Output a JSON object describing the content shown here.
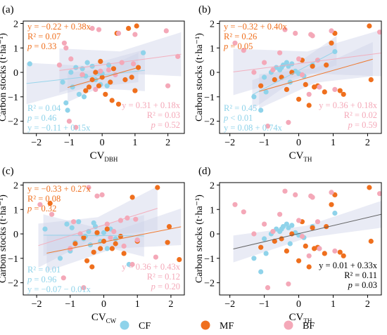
{
  "colors": {
    "CF": "#8fd3ea",
    "MF": "#ef6f1d",
    "BF": "#f4a8b8",
    "overall": "#555555",
    "band": "#cfd2e8"
  },
  "legend": [
    {
      "key": "CF",
      "label": "CF"
    },
    {
      "key": "MF",
      "label": "MF"
    },
    {
      "key": "BF",
      "label": "BF"
    }
  ],
  "chart_data": [
    {
      "type": "scatter",
      "panel_label": "(a)",
      "xlabel": "CV",
      "xlabel_sub": "DBH",
      "ylabel": "Carbon stocks (t·ha⁻¹)",
      "xlim": [
        -2.4,
        2.5
      ],
      "ylim": [
        -2.5,
        2.1
      ],
      "xticks": [
        -2,
        -1,
        0,
        1,
        2
      ],
      "yticks": [
        -2,
        -1,
        0,
        1,
        2
      ],
      "series": [
        {
          "name": "CF",
          "x": [
            -2.2,
            -1.2,
            -1.05,
            -0.95,
            -0.8,
            -0.6,
            -0.45,
            -0.3,
            -0.2,
            -0.1,
            0.0,
            0.2,
            -0.5,
            -0.7,
            -1.1,
            -0.05,
            0.15,
            1.25,
            -0.9,
            -0.55
          ],
          "y": [
            0.35,
            -0.4,
            -1.55,
            0.0,
            0.2,
            0.15,
            0.4,
            0.25,
            -0.3,
            0.0,
            -0.05,
            0.3,
            -0.15,
            -0.9,
            -1.25,
            -0.5,
            -0.55,
            0.8,
            -0.6,
            -1.0
          ]
        },
        {
          "name": "MF",
          "x": [
            1.05,
            0.45,
            0.8,
            -0.4,
            -0.3,
            -0.2,
            0.0,
            0.25,
            -0.5,
            0.1,
            -0.1,
            0.7,
            -0.6,
            0.5,
            0.3,
            1.0,
            -0.05,
            0.35,
            0.9,
            1.1
          ],
          "y": [
            1.9,
            1.6,
            1.8,
            -0.6,
            -0.3,
            0.0,
            -0.2,
            -0.4,
            -0.75,
            -0.9,
            -0.55,
            -0.3,
            -0.1,
            -1.3,
            -1.15,
            -0.75,
            0.45,
            0.15,
            -0.2,
            0.2
          ]
        },
        {
          "name": "BF",
          "x": [
            -1.15,
            -1.1,
            -1.3,
            -0.95,
            -0.6,
            -0.3,
            -0.1,
            0.5,
            1.0,
            1.95,
            2.0,
            2.3,
            0.2,
            0.6,
            -1.0,
            -0.8,
            -0.05,
            -0.2,
            0.95,
            0.4
          ],
          "y": [
            1.2,
            1.0,
            0.3,
            0.55,
            -0.1,
            1.8,
            1.75,
            1.6,
            1.55,
            1.7,
            -0.55,
            0.65,
            0.1,
            0.4,
            -2.0,
            -2.25,
            0.05,
            -0.7,
            0.35,
            -0.1
          ]
        }
      ],
      "fits": [
        {
          "group": "CF",
          "intercept": -0.11,
          "slope": 0.15,
          "x_range": [
            -2.3,
            1.3
          ],
          "band": [
            0.45,
            0.85
          ],
          "lines": [
            "R² = 0.04",
            "p = 0.46",
            "y = −0.11 + 0.15x"
          ]
        },
        {
          "group": "MF",
          "intercept": -0.22,
          "slope": 0.38,
          "x_range": [
            -1.05,
            1.1
          ],
          "band": [
            0.35,
            0.6
          ],
          "lines": [
            "y = −0.22 + 0.38x",
            "R² = 0.07",
            "p = 0.33"
          ]
        },
        {
          "group": "BF",
          "intercept": 0.31,
          "slope": 0.18,
          "x_range": [
            -1.3,
            2.4
          ],
          "band": [
            0.45,
            0.9
          ],
          "lines": [
            "y = 0.31 + 0.18x",
            "R² = 0.03",
            "p = 0.52"
          ]
        }
      ]
    },
    {
      "type": "scatter",
      "panel_label": "(b)",
      "xlabel": "CV",
      "xlabel_sub": "TH",
      "ylabel": "Carbon stocks (t·ha⁻¹)",
      "xlim": [
        -2.3,
        2.4
      ],
      "ylim": [
        -2.5,
        2.1
      ],
      "xticks": [
        -2,
        -1,
        0,
        1,
        2
      ],
      "yticks": [
        -2,
        -1,
        0,
        1,
        2
      ],
      "series": [
        {
          "name": "CF",
          "x": [
            -1.3,
            -1.1,
            -0.95,
            -0.8,
            -0.65,
            -0.55,
            -0.45,
            -0.35,
            -0.3,
            -0.2,
            -0.1,
            0.0,
            0.15,
            0.4,
            0.6,
            1.05,
            -1.0,
            -0.7,
            -0.25,
            -0.5
          ],
          "y": [
            -1.0,
            -1.55,
            -0.8,
            0.0,
            0.2,
            0.1,
            0.3,
            0.4,
            0.25,
            0.35,
            0.05,
            -0.05,
            -0.15,
            0.3,
            -0.6,
            0.85,
            -0.2,
            -0.3,
            -0.4,
            0.2
          ]
        },
        {
          "name": "MF",
          "x": [
            2.05,
            1.05,
            0.95,
            -1.1,
            -0.7,
            -0.35,
            0.0,
            0.2,
            0.45,
            0.75,
            1.2,
            -0.2,
            0.4,
            0.3,
            -0.5,
            0.8,
            1.3,
            0.55,
            2.1,
            0.1
          ],
          "y": [
            1.9,
            1.6,
            1.2,
            -0.55,
            -0.3,
            -0.7,
            -1.1,
            -0.5,
            -0.6,
            -0.8,
            -0.75,
            0.0,
            0.25,
            -1.35,
            -0.2,
            0.3,
            -0.9,
            -0.55,
            -0.3,
            0.5
          ]
        },
        {
          "name": "BF",
          "x": [
            -1.85,
            -1.6,
            -1.0,
            -0.75,
            -0.4,
            -0.1,
            0.35,
            0.4,
            0.95,
            1.05,
            2.35,
            0.55,
            0.1,
            -0.3,
            -0.9,
            -0.55,
            0.0,
            0.6,
            -1.3,
            0.3
          ],
          "y": [
            1.2,
            0.9,
            0.4,
            0.1,
            1.75,
            1.6,
            1.55,
            1.5,
            1.7,
            -0.7,
            1.65,
            0.5,
            -0.1,
            -2.05,
            -2.2,
            0.8,
            0.55,
            -0.6,
            0.0,
            -0.9
          ]
        }
      ],
      "fits": [
        {
          "group": "CF",
          "intercept": 0.08,
          "slope": 0.74,
          "x_range": [
            -1.35,
            1.1
          ],
          "band": [
            0.3,
            0.6
          ],
          "lines": [
            "R² = 0.45",
            "p < 0.01",
            "y = 0.08 + 0.74x"
          ]
        },
        {
          "group": "MF",
          "intercept": -0.32,
          "slope": 0.4,
          "x_range": [
            -1.15,
            2.15
          ],
          "band": [
            0.3,
            0.7
          ],
          "lines": [
            "y = −0.32 + 0.40x",
            "R² = 0.26",
            "p = 0.05"
          ]
        },
        {
          "group": "BF",
          "intercept": 0.36,
          "slope": 0.18,
          "x_range": [
            -1.9,
            2.4
          ],
          "band": [
            0.45,
            0.95
          ],
          "lines": [
            "y = 0.36 + 0.18x",
            "R² = 0.02",
            "p = 0.59"
          ]
        }
      ]
    },
    {
      "type": "scatter",
      "panel_label": "(c)",
      "xlabel": "CV",
      "xlabel_sub": "CW",
      "ylabel": "Carbon stocks (t·ha⁻¹)",
      "xlim": [
        -2.4,
        2.4
      ],
      "ylim": [
        -2.5,
        2.1
      ],
      "xticks": [
        -2,
        -1,
        0,
        1,
        2
      ],
      "yticks": [
        -2,
        -1,
        0,
        1,
        2
      ],
      "series": [
        {
          "name": "CF",
          "x": [
            -1.75,
            -1.3,
            -1.1,
            -0.95,
            -0.85,
            -0.75,
            -0.6,
            -0.45,
            -0.3,
            -0.2,
            -0.1,
            0.0,
            0.1,
            0.2,
            0.75,
            -0.55,
            -0.25,
            -1.0,
            -0.4,
            0.35
          ],
          "y": [
            0.2,
            -1.0,
            0.4,
            0.25,
            -0.35,
            0.5,
            -0.2,
            0.1,
            0.45,
            0.0,
            -0.3,
            0.05,
            -0.6,
            0.2,
            -1.25,
            -0.1,
            0.3,
            -0.7,
            -0.45,
            -0.2
          ]
        },
        {
          "name": "MF",
          "x": [
            1.6,
            2.25,
            1.95,
            -1.6,
            -0.85,
            -0.6,
            -0.35,
            -0.1,
            0.0,
            0.35,
            0.6,
            0.85,
            -0.2,
            0.25,
            -0.5,
            0.1,
            0.5,
            1.0,
            -0.3,
            1.9
          ],
          "y": [
            1.9,
            -1.05,
            0.3,
            1.25,
            -0.4,
            -0.15,
            -1.35,
            -0.6,
            -0.3,
            -0.4,
            -0.8,
            1.5,
            0.05,
            -0.6,
            -1.1,
            0.2,
            -0.1,
            -0.3,
            -0.75,
            -0.35
          ]
        },
        {
          "name": "BF",
          "x": [
            -1.9,
            -1.55,
            -0.9,
            -0.45,
            -0.2,
            -0.05,
            0.5,
            0.7,
            0.95,
            1.0,
            0.85,
            1.55,
            0.3,
            -0.7,
            -1.2,
            0.1,
            -0.6,
            0.6,
            -1.0,
            0.2
          ],
          "y": [
            1.2,
            0.8,
            0.5,
            1.9,
            1.55,
            1.6,
            0.55,
            0.65,
            0.6,
            -0.25,
            -1.25,
            -0.95,
            0.1,
            0.0,
            -1.8,
            0.4,
            -2.2,
            -0.5,
            -0.6,
            -0.15
          ]
        }
      ],
      "fits": [
        {
          "group": "CF",
          "intercept": -0.07,
          "slope": -0.01,
          "x_range": [
            -1.8,
            1.2
          ],
          "band": [
            0.35,
            0.85
          ],
          "lines": [
            "R² = 0.01",
            "p = 0.96",
            "y = −0.07 − 0.01x"
          ]
        },
        {
          "group": "MF",
          "intercept": -0.33,
          "slope": 0.27,
          "x_range": [
            -1.7,
            2.3
          ],
          "band": [
            0.35,
            0.75
          ],
          "lines": [
            "y = −0.33 + 0.27x",
            "R² = 0.08",
            "p = 0.32"
          ]
        },
        {
          "group": "BF",
          "intercept": 0.36,
          "slope": 0.43,
          "x_range": [
            -1.95,
            1.6
          ],
          "band": [
            0.4,
            0.9
          ],
          "lines": [
            "y = 0.36 + 0.43x",
            "R² = 0.12",
            "p = 0.20"
          ]
        }
      ]
    },
    {
      "type": "scatter",
      "panel_label": "(d)",
      "xlabel": "CV",
      "xlabel_sub": "TH",
      "ylabel": "Carbon stocks (t·ha⁻¹)",
      "xlim": [
        -2.3,
        2.4
      ],
      "ylim": [
        -2.5,
        2.1
      ],
      "xticks": [
        -2,
        -1,
        0,
        1,
        2
      ],
      "yticks": [
        -2,
        -1,
        0,
        1,
        2
      ],
      "series": [
        {
          "name": "CF",
          "x": [
            -1.3,
            -1.1,
            -0.95,
            -0.8,
            -0.65,
            -0.55,
            -0.45,
            -0.35,
            -0.3,
            -0.2,
            -0.1,
            0.0,
            0.15,
            0.4,
            0.6,
            1.05,
            -1.0,
            -0.7,
            -0.25,
            -0.5
          ],
          "y": [
            -1.0,
            -1.55,
            -0.8,
            0.0,
            0.2,
            0.1,
            0.3,
            0.4,
            0.25,
            0.35,
            0.05,
            -0.05,
            -0.15,
            0.3,
            -0.6,
            0.85,
            -0.2,
            -0.3,
            -0.4,
            0.2
          ]
        },
        {
          "name": "MF",
          "x": [
            2.05,
            1.05,
            0.95,
            -1.1,
            -0.7,
            -0.35,
            0.0,
            0.2,
            0.45,
            0.75,
            1.2,
            -0.2,
            0.4,
            0.3,
            -0.5,
            0.8,
            1.3,
            0.55,
            2.1,
            0.1
          ],
          "y": [
            1.9,
            1.6,
            1.2,
            -0.55,
            -0.3,
            -0.7,
            -1.1,
            -0.5,
            -0.6,
            -0.8,
            -0.75,
            0.0,
            0.25,
            -1.35,
            -0.2,
            0.3,
            -0.9,
            -0.55,
            -0.3,
            0.5
          ]
        },
        {
          "name": "BF",
          "x": [
            -1.85,
            -1.6,
            -1.0,
            -0.75,
            -0.4,
            -0.1,
            0.35,
            0.4,
            0.95,
            1.05,
            2.35,
            0.55,
            0.1,
            -0.3,
            -0.9,
            -0.55,
            0.0,
            0.6,
            -1.3,
            0.3
          ],
          "y": [
            1.2,
            0.9,
            0.4,
            0.1,
            1.75,
            1.6,
            1.55,
            1.5,
            1.7,
            -0.7,
            1.65,
            0.5,
            -0.1,
            -2.05,
            -2.2,
            0.8,
            0.55,
            -0.6,
            0.0,
            -0.9
          ]
        }
      ],
      "fits": [
        {
          "group": "overall",
          "intercept": 0.01,
          "slope": 0.33,
          "x_range": [
            -1.9,
            2.4
          ],
          "band": [
            0.25,
            0.55
          ],
          "lines": [
            "y = 0.01 + 0.33x",
            "R² = 0.11",
            "p = 0.03"
          ]
        }
      ]
    }
  ]
}
